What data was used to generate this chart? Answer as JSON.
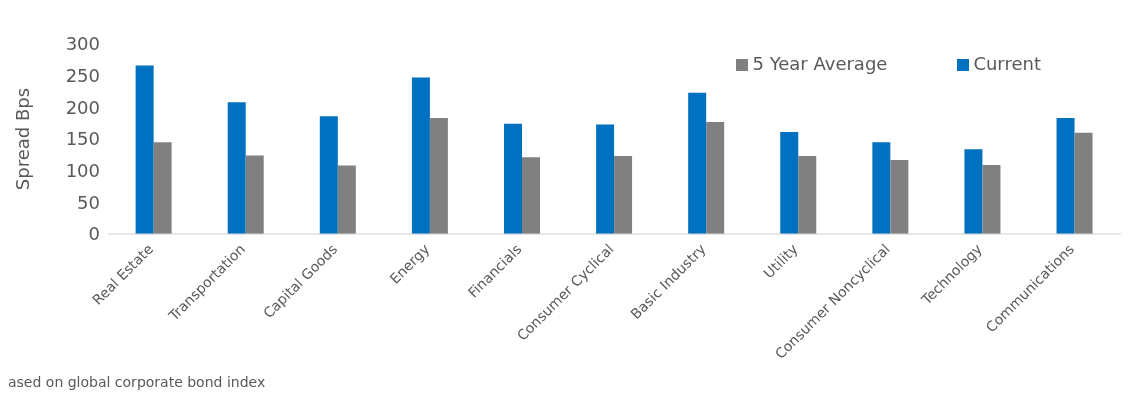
{
  "chart_data": {
    "type": "bar",
    "ylabel": "Spread Bps",
    "categories": [
      "Real Estate",
      "Transportation",
      "Capital Goods",
      "Energy",
      "Financials",
      "Consumer Cyclical",
      "Basic Industry",
      "Utility",
      "Consumer Noncyclical",
      "Technology",
      "Communications"
    ],
    "series": [
      {
        "name": "Current",
        "color": "#0070c0",
        "values": [
          266,
          208,
          186,
          247,
          174,
          173,
          223,
          161,
          145,
          134,
          183
        ]
      },
      {
        "name": "5 Year Average",
        "color": "#808080",
        "values": [
          145,
          124,
          108,
          183,
          121,
          123,
          177,
          123,
          117,
          109,
          160
        ]
      }
    ],
    "ylim": [
      0,
      300
    ],
    "yticks": [
      0,
      50,
      100,
      150,
      200,
      250,
      300
    ],
    "grid": false,
    "legend": "top right",
    "annotations": [
      "ased on global corporate bond index"
    ]
  }
}
